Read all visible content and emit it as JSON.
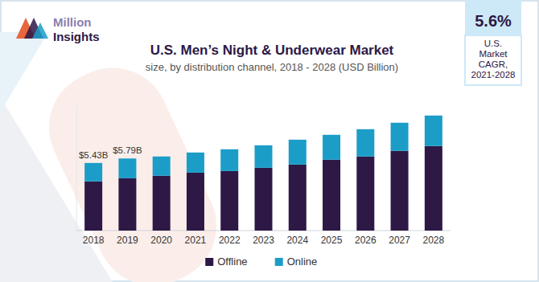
{
  "chart_data": {
    "type": "bar",
    "title": "U.S. Men’s Night & Underwear Market",
    "subtitle": "size, by distribution channel, 2018 - 2028 (USD Billion)",
    "categories": [
      "2018",
      "2019",
      "2020",
      "2021",
      "2022",
      "2023",
      "2024",
      "2025",
      "2026",
      "2027",
      "2028"
    ],
    "series": [
      {
        "name": "Offline",
        "color": "#2d1846",
        "values": [
          3.95,
          4.2,
          4.4,
          4.65,
          4.78,
          5.04,
          5.3,
          5.69,
          5.95,
          6.4,
          6.79
        ]
      },
      {
        "name": "Online",
        "color": "#1b9dc8",
        "values": [
          1.48,
          1.59,
          1.55,
          1.62,
          1.75,
          1.81,
          2.0,
          2.0,
          2.19,
          2.26,
          2.45
        ]
      }
    ],
    "stacked": true,
    "ylim": [
      0,
      10
    ],
    "yticks": [],
    "tick_labels": "x",
    "grid": false,
    "legend": "bottom",
    "annotations": [
      {
        "category": "2018",
        "text": "$5.43B"
      },
      {
        "category": "2019",
        "text": "$5.79B"
      }
    ]
  },
  "logo": {
    "line1": "Million",
    "line2": "Insights"
  },
  "cagr_box": {
    "value": "5.6%",
    "label": [
      "U.S.",
      "Market",
      "CAGR,",
      "2021-2028"
    ]
  }
}
